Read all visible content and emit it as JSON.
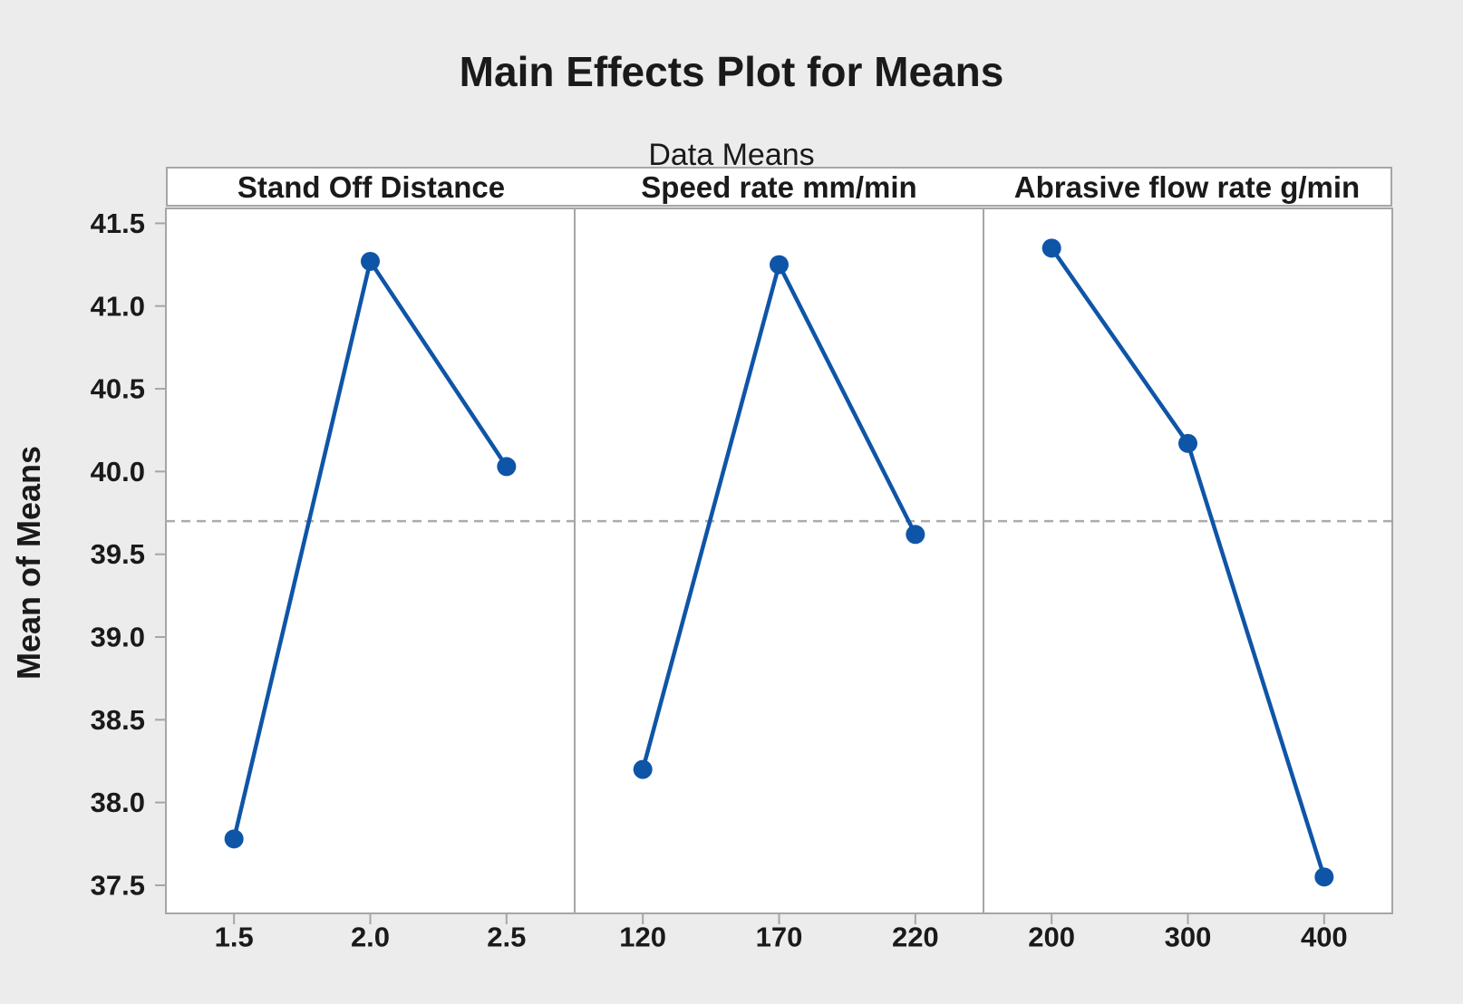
{
  "chart_data": {
    "type": "line",
    "title": "Main Effects Plot for Means",
    "subtitle": "Data Means",
    "ylabel": "Mean of Means",
    "ylim": [
      37.33,
      41.59
    ],
    "y_ticks": [
      41.5,
      41.0,
      40.5,
      40.0,
      39.5,
      39.0,
      38.5,
      38.0,
      37.5
    ],
    "y_tick_decimals": 1,
    "reference_line_mean": 39.7,
    "grid": false,
    "legend": "none",
    "panels": [
      {
        "title": "Stand Off Distance",
        "categories": [
          "1.5",
          "2.0",
          "2.5"
        ],
        "values": [
          37.78,
          41.27,
          40.03
        ]
      },
      {
        "title": "Speed rate mm/min",
        "categories": [
          "120",
          "170",
          "220"
        ],
        "values": [
          38.2,
          41.25,
          39.62
        ]
      },
      {
        "title": "Abrasive flow rate g/min",
        "categories": [
          "200",
          "300",
          "400"
        ],
        "values": [
          41.35,
          40.17,
          37.55
        ]
      }
    ],
    "colors": {
      "series": "#0E55A7",
      "reference_line": "#ABABAB",
      "panel_border": "#A6A6A6",
      "tick_mark": "#A6A6A6",
      "plot_background": "#FFFFFF",
      "page_background": "#ECECEC",
      "text": "#1A1A1A"
    }
  }
}
